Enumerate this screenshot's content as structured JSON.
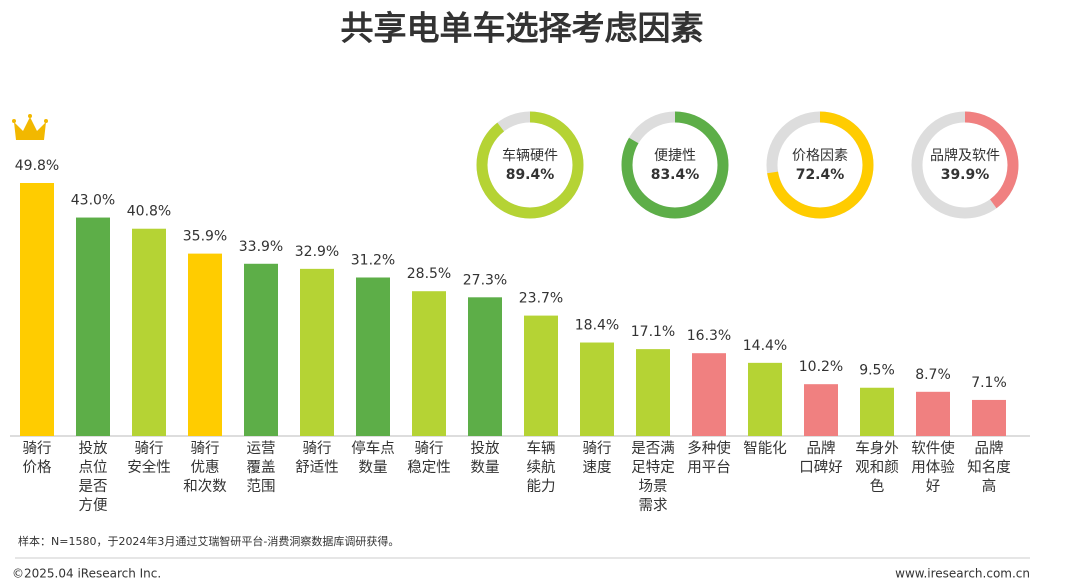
{
  "chart_data": [
    {
      "type": "bar",
      "title": "共享电单车选择考虑因素",
      "categories": [
        [
          "骑行",
          "价格"
        ],
        [
          "投放",
          "点位",
          "是否",
          "方便"
        ],
        [
          "骑行",
          "安全性"
        ],
        [
          "骑行",
          "优惠",
          "和次数"
        ],
        [
          "运营",
          "覆盖",
          "范围"
        ],
        [
          "骑行",
          "舒适性"
        ],
        [
          "停车点",
          "数量"
        ],
        [
          "骑行",
          "稳定性"
        ],
        [
          "投放",
          "数量"
        ],
        [
          "车辆",
          "续航",
          "能力"
        ],
        [
          "骑行",
          "速度"
        ],
        [
          "是否满",
          "足特定",
          "场景",
          "需求"
        ],
        [
          "多种使",
          "用平台"
        ],
        [
          "智能化"
        ],
        [
          "品牌",
          "口碑好"
        ],
        [
          "车身外",
          "观和颜",
          "色"
        ],
        [
          "软件使",
          "用体验",
          "好"
        ],
        [
          "品牌",
          "知名度",
          "高"
        ]
      ],
      "values": [
        49.8,
        43.0,
        40.8,
        35.9,
        33.9,
        32.9,
        31.2,
        28.5,
        27.3,
        23.7,
        18.4,
        17.1,
        16.3,
        14.4,
        10.2,
        9.5,
        8.7,
        7.1
      ],
      "value_labels": [
        "49.8%",
        "43.0%",
        "40.8%",
        "35.9%",
        "33.9%",
        "32.9%",
        "31.2%",
        "28.5%",
        "27.3%",
        "23.7%",
        "18.4%",
        "17.1%",
        "16.3%",
        "14.4%",
        "10.2%",
        "9.5%",
        "8.7%",
        "7.1%"
      ],
      "colors": [
        "#FFCC00",
        "#5DAE48",
        "#B5D334",
        "#FFCC00",
        "#5DAE48",
        "#B5D334",
        "#5DAE48",
        "#B5D334",
        "#5DAE48",
        "#B5D334",
        "#B5D334",
        "#B5D334",
        "#F08080",
        "#B5D334",
        "#F08080",
        "#B5D334",
        "#F08080",
        "#F08080"
      ]
    },
    {
      "type": "donut",
      "categories": [
        "车辆硬件",
        "便捷性",
        "价格因素",
        "品牌及软件"
      ],
      "values": [
        89.4,
        83.4,
        72.4,
        39.9
      ],
      "value_labels": [
        "89.4%",
        "83.4%",
        "72.4%",
        "39.9%"
      ],
      "colors": [
        "#B5D334",
        "#5DAE48",
        "#FFCC00",
        "#F08080"
      ]
    }
  ],
  "footnote": "样本：N=1580，于2024年3月通过艾瑞智研平台-消费洞察数据库调研获得。",
  "copyright": "©2025.04 iResearch Inc.",
  "website": "www.iresearch.com.cn"
}
